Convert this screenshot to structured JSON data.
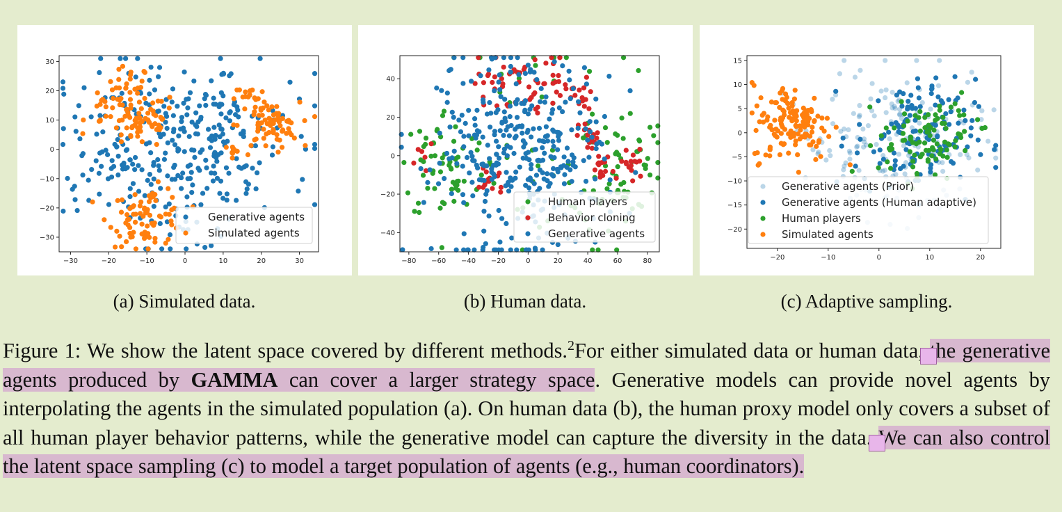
{
  "figures": [
    {
      "id": "a",
      "subcaption": "(a) Simulated data.",
      "chart_data": {
        "type": "scatter",
        "xlim": [
          -33,
          35
        ],
        "ylim": [
          -35,
          32
        ],
        "xticks": [
          -30,
          -20,
          -10,
          0,
          10,
          20,
          30
        ],
        "yticks": [
          -30,
          -20,
          -10,
          0,
          10,
          20,
          30
        ],
        "legend_position": "lower-right",
        "series": [
          {
            "name": "Generative agents",
            "color": "#1f77b4",
            "alpha": 1,
            "clusters": [
              [
                -8,
                8,
                12,
                130
              ],
              [
                10,
                5,
                12,
                110
              ],
              [
                0,
                -15,
                10,
                70
              ],
              [
                -20,
                -10,
                6,
                30
              ]
            ]
          },
          {
            "name": "Simulated agents",
            "color": "#ff7f0e",
            "alpha": 1,
            "clusters": [
              [
                -12,
                10,
                5,
                70
              ],
              [
                -15,
                22,
                3,
                20
              ],
              [
                -20,
                13,
                3,
                15
              ],
              [
                -10,
                -23,
                5,
                80
              ],
              [
                22,
                8,
                4,
                70
              ],
              [
                17,
                18,
                2,
                15
              ],
              [
                13,
                -1,
                2,
                10
              ]
            ]
          }
        ]
      }
    },
    {
      "id": "b",
      "subcaption": "(b) Human data.",
      "chart_data": {
        "type": "scatter",
        "xlim": [
          -86,
          88
        ],
        "ylim": [
          -50,
          52
        ],
        "xticks": [
          -80,
          -60,
          -40,
          -20,
          0,
          20,
          40,
          60,
          80
        ],
        "yticks": [
          -40,
          -20,
          0,
          20,
          40
        ],
        "legend_position": "lower-right",
        "series": [
          {
            "name": "Human players",
            "color": "#2ca02c",
            "alpha": 1,
            "clusters": [
              [
                -55,
                -5,
                15,
                60
              ],
              [
                60,
                -5,
                15,
                60
              ],
              [
                0,
                0,
                40,
                50
              ]
            ]
          },
          {
            "name": "Behavior cloning",
            "color": "#d62728",
            "alpha": 1,
            "clusters": [
              [
                -20,
                38,
                8,
                25
              ],
              [
                10,
                40,
                8,
                25
              ],
              [
                35,
                30,
                5,
                18
              ],
              [
                42,
                10,
                4,
                15
              ],
              [
                50,
                -8,
                4,
                15
              ],
              [
                70,
                -5,
                5,
                15
              ],
              [
                -25,
                -12,
                5,
                15
              ],
              [
                -70,
                0,
                3,
                6
              ],
              [
                0,
                28,
                3,
                6
              ]
            ]
          },
          {
            "name": "Generative agents",
            "color": "#1f77b4",
            "alpha": 1,
            "clusters": [
              [
                -5,
                0,
                28,
                240
              ],
              [
                -30,
                0,
                20,
                60
              ],
              [
                25,
                0,
                18,
                60
              ]
            ]
          }
        ]
      }
    },
    {
      "id": "c",
      "subcaption": "(c) Adaptive sampling.",
      "chart_data": {
        "type": "scatter",
        "xlim": [
          -26,
          24
        ],
        "ylim": [
          -24,
          16
        ],
        "xticks": [
          -20,
          -10,
          0,
          10,
          20
        ],
        "yticks": [
          -20,
          -15,
          -10,
          -5,
          0,
          5,
          10,
          15
        ],
        "legend_position": "lower-left",
        "series": [
          {
            "name": "Generative agents (Prior)",
            "color": "#1f77b4",
            "alpha": 0.3,
            "clusters": [
              [
                5,
                -2,
                8,
                140
              ],
              [
                -8,
                0,
                5,
                30
              ]
            ]
          },
          {
            "name": "Generative agents (Human adaptive)",
            "color": "#1f77b4",
            "alpha": 1,
            "clusters": [
              [
                7,
                -1,
                6,
                140
              ]
            ]
          },
          {
            "name": "Human players",
            "color": "#2ca02c",
            "alpha": 1,
            "clusters": [
              [
                8,
                -2,
                4,
                70
              ],
              [
                15,
                2,
                3,
                25
              ]
            ]
          },
          {
            "name": "Simulated agents",
            "color": "#ff7f0e",
            "alpha": 1,
            "clusters": [
              [
                -17,
                2,
                4,
                140
              ]
            ]
          }
        ]
      }
    }
  ],
  "caption": {
    "p1": "Figure 1: We show the latent space covered by different methods.",
    "footnote_mark": "2",
    "p2": "For either simulated data or human data, ",
    "hl1a": "the generative agents produced by ",
    "hl1b": "GAMMA",
    "hl1c": " can cover a larger strategy space",
    "p3": ". Generative models can provide novel agents by interpolating the agents in the simulated population (a). On human data (b), the human proxy model only covers a subset of all human player behavior patterns, while the generative model can capture the diversity in the data. ",
    "hl2": "We can also control the latent space sampling (c) to model a target population of agents (e.g., human coordinators)."
  }
}
